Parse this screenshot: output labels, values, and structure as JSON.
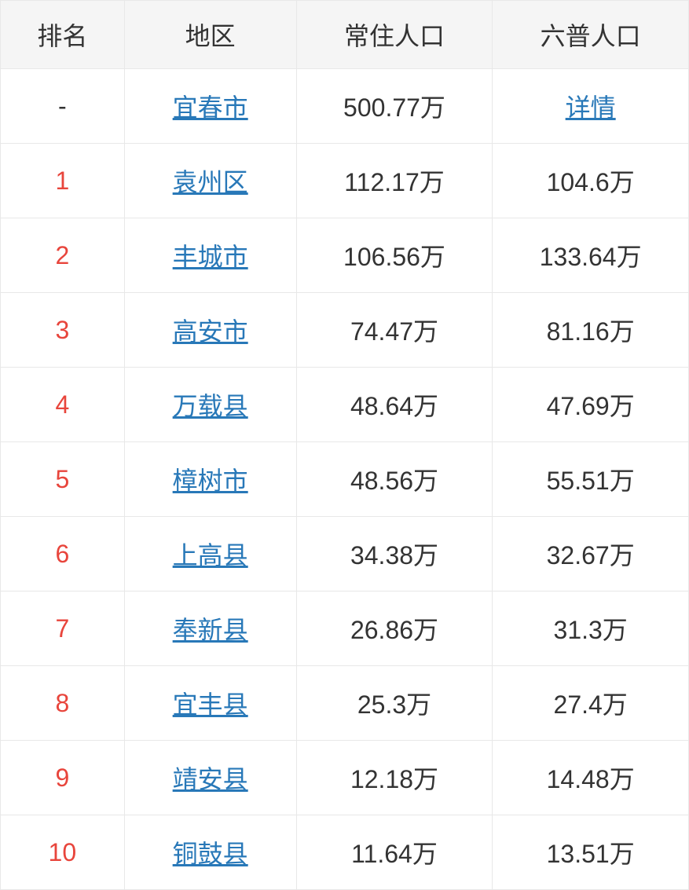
{
  "table": {
    "headers": {
      "rank": "排名",
      "region": "地区",
      "resident_pop": "常住人口",
      "census_pop": "六普人口"
    },
    "rows": [
      {
        "rank": "-",
        "region": "宜春市",
        "resident_pop": "500.77万",
        "census_pop": "详情",
        "census_is_link": true
      },
      {
        "rank": "1",
        "region": "袁州区",
        "resident_pop": "112.17万",
        "census_pop": "104.6万",
        "census_is_link": false
      },
      {
        "rank": "2",
        "region": "丰城市",
        "resident_pop": "106.56万",
        "census_pop": "133.64万",
        "census_is_link": false
      },
      {
        "rank": "3",
        "region": "高安市",
        "resident_pop": "74.47万",
        "census_pop": "81.16万",
        "census_is_link": false
      },
      {
        "rank": "4",
        "region": "万载县",
        "resident_pop": "48.64万",
        "census_pop": "47.69万",
        "census_is_link": false
      },
      {
        "rank": "5",
        "region": "樟树市",
        "resident_pop": "48.56万",
        "census_pop": "55.51万",
        "census_is_link": false
      },
      {
        "rank": "6",
        "region": "上高县",
        "resident_pop": "34.38万",
        "census_pop": "32.67万",
        "census_is_link": false
      },
      {
        "rank": "7",
        "region": "奉新县",
        "resident_pop": "26.86万",
        "census_pop": "31.3万",
        "census_is_link": false
      },
      {
        "rank": "8",
        "region": "宜丰县",
        "resident_pop": "25.3万",
        "census_pop": "27.4万",
        "census_is_link": false
      },
      {
        "rank": "9",
        "region": "靖安县",
        "resident_pop": "12.18万",
        "census_pop": "14.48万",
        "census_is_link": false
      },
      {
        "rank": "10",
        "region": "铜鼓县",
        "resident_pop": "11.64万",
        "census_pop": "13.51万",
        "census_is_link": false
      }
    ],
    "styling": {
      "header_bg": "#f5f5f5",
      "header_color": "#333333",
      "border_color": "#e8e8e8",
      "rank_color": "#e8453c",
      "link_color": "#2878b8",
      "cell_color": "#333333",
      "font_size": 32,
      "header_padding": "20px 8px",
      "cell_padding": "24px 8px",
      "col_widths": [
        "18%",
        "25%",
        "28.5%",
        "28.5%"
      ]
    }
  }
}
